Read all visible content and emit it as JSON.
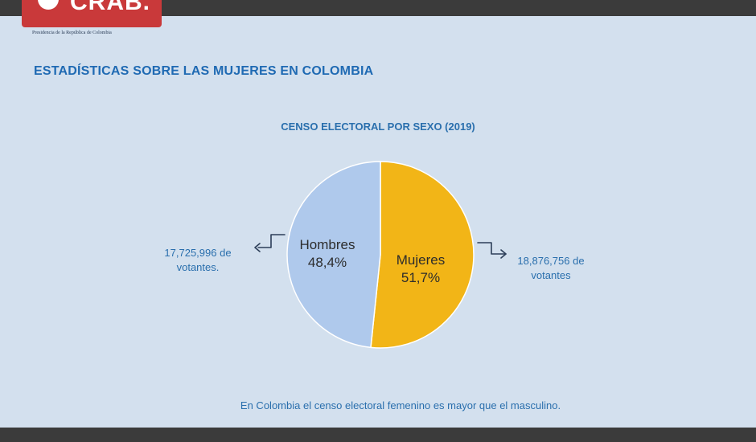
{
  "logo": {
    "brand_text": "CRAB.",
    "subtitle": "Presidencia de la República de Colombia"
  },
  "page": {
    "title": "ESTADÍSTICAS SOBRE LAS MUJERES EN COLOMBIA",
    "footer_note": "En Colombia el censo electoral femenino es mayor que el masculino."
  },
  "chart_data": {
    "type": "pie",
    "title": "CENSO ELECTORAL POR SEXO (2019)",
    "slices": [
      {
        "label": "Mujeres",
        "percent_label": "51,7%",
        "value": 51.7,
        "voters": "18,876,756 de votantes",
        "color": "#f2b517"
      },
      {
        "label": "Hombres",
        "percent_label": "48,4%",
        "value": 48.4,
        "voters": "17,725,996 de votantes.",
        "color": "#afc9ec"
      }
    ],
    "legend": "none",
    "grid": false
  },
  "colors": {
    "background": "#d3e0ee",
    "title_blue": "#1f6ab3",
    "text_blue": "#2a6fad",
    "logo_red": "#c9393a"
  }
}
